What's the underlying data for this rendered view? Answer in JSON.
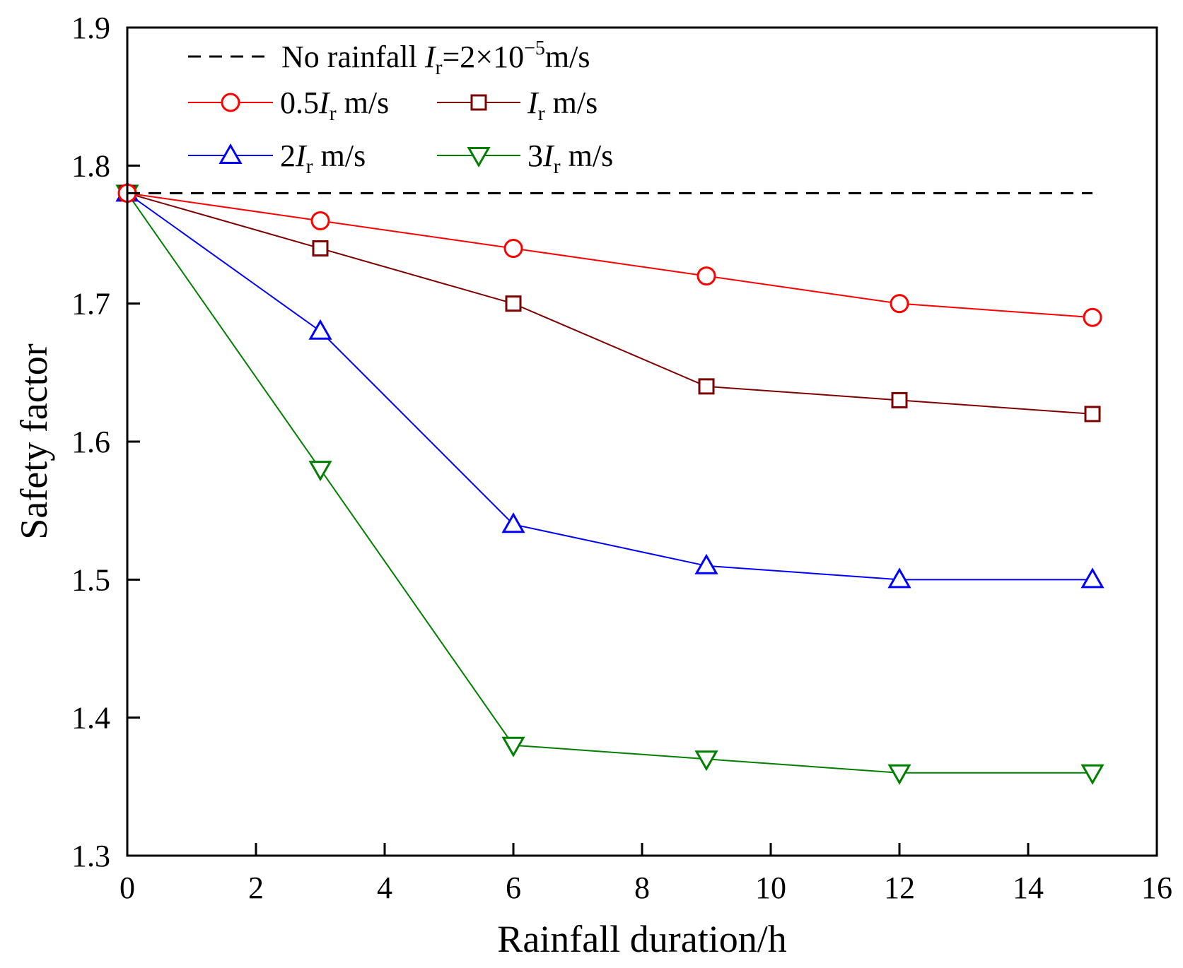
{
  "chart_data": {
    "type": "line",
    "title": "",
    "xlabel": "Rainfall duration/h",
    "ylabel": "Safety factor",
    "xlim": [
      0,
      16
    ],
    "ylim": [
      1.3,
      1.9
    ],
    "xticks": [
      "0",
      "2",
      "4",
      "6",
      "8",
      "10",
      "12",
      "14",
      "16"
    ],
    "yticks": [
      "1.3",
      "1.4",
      "1.5",
      "1.6",
      "1.7",
      "1.8",
      "1.9"
    ],
    "xtick_values": [
      0,
      2,
      4,
      6,
      8,
      10,
      12,
      14,
      16
    ],
    "ytick_values": [
      1.3,
      1.4,
      1.5,
      1.6,
      1.7,
      1.8,
      1.9
    ],
    "grid": false,
    "legend_position": "top-left",
    "reference_line": {
      "name": "No rainfall",
      "label_prefix": "No rainfall  ",
      "label_italic": "I",
      "label_sub": "r",
      "label_mid": "=2×10",
      "label_sup": "−5",
      "label_suffix": "m/s",
      "y": 1.78,
      "x_range": [
        0,
        15
      ],
      "color": "#000000",
      "style": "dashed"
    },
    "series": [
      {
        "name": "0.5Ir m/s",
        "label_prefix": "0.5",
        "label_italic": "I",
        "label_sub": "r",
        "label_suffix": " m/s",
        "color": "#ff0000",
        "marker": "circle",
        "x": [
          0,
          3,
          6,
          9,
          12,
          15
        ],
        "values": [
          1.78,
          1.76,
          1.74,
          1.72,
          1.7,
          1.69
        ]
      },
      {
        "name": "Ir m/s",
        "label_prefix": "",
        "label_italic": "I",
        "label_sub": "r",
        "label_suffix": " m/s",
        "color": "#7f0000",
        "marker": "square",
        "x": [
          0,
          3,
          6,
          9,
          12,
          15
        ],
        "values": [
          1.78,
          1.74,
          1.7,
          1.64,
          1.63,
          1.62
        ]
      },
      {
        "name": "2Ir m/s",
        "label_prefix": "2",
        "label_italic": "I",
        "label_sub": "r",
        "label_suffix": " m/s",
        "color": "#0000ff",
        "marker": "triangle-up",
        "x": [
          0,
          3,
          6,
          9,
          12,
          15
        ],
        "values": [
          1.78,
          1.68,
          1.54,
          1.51,
          1.5,
          1.5
        ]
      },
      {
        "name": "3Ir m/s",
        "label_prefix": "3",
        "label_italic": "I",
        "label_sub": "r",
        "label_suffix": " m/s",
        "color": "#007f00",
        "marker": "triangle-down",
        "x": [
          0,
          3,
          6,
          9,
          12,
          15
        ],
        "values": [
          1.78,
          1.58,
          1.38,
          1.37,
          1.36,
          1.36
        ]
      }
    ]
  }
}
